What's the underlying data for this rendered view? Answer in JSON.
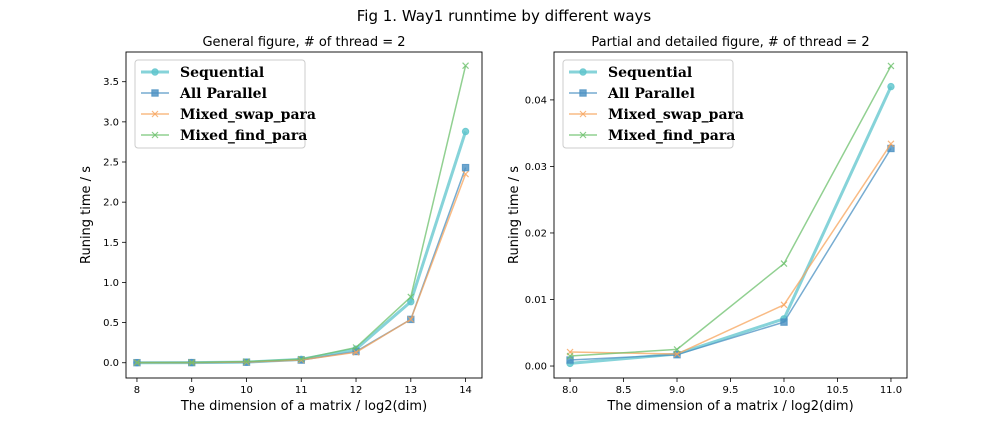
{
  "suptitle": "Fig 1. Way1 runntime by different ways",
  "colors": {
    "Sequential": "#5ec4cc",
    "All Parallel": "#4a90c2",
    "Mixed_swap_para": "#f7a45c",
    "Mixed_find_para": "#6cc06c"
  },
  "chart_data": [
    {
      "type": "line",
      "title": "General figure, # of thread = 2",
      "xlabel": "The dimension of a matrix / log2(dim)",
      "ylabel": "Runing time / s",
      "xlim": [
        7.8,
        14.3
      ],
      "ylim": [
        -0.19,
        3.87
      ],
      "xticks": [
        8,
        9,
        10,
        11,
        12,
        13,
        14
      ],
      "yticks": [
        0.0,
        0.5,
        1.0,
        1.5,
        2.0,
        2.5,
        3.0,
        3.5
      ],
      "xtick_labels": [
        "8",
        "9",
        "10",
        "11",
        "12",
        "13",
        "14"
      ],
      "ytick_labels": [
        "0.0",
        "0.5",
        "1.0",
        "1.5",
        "2.0",
        "2.5",
        "3.0",
        "3.5"
      ],
      "legend": "top-left",
      "grid": false,
      "x": [
        8,
        9,
        10,
        11,
        12,
        13,
        14
      ],
      "series": [
        {
          "name": "Sequential",
          "marker": "circle",
          "width": 3,
          "values": [
            0.0004,
            0.0018,
            0.007,
            0.042,
            0.17,
            0.76,
            2.88
          ]
        },
        {
          "name": "All Parallel",
          "marker": "square",
          "width": 1.5,
          "values": [
            0.0009,
            0.0017,
            0.0066,
            0.033,
            0.14,
            0.54,
            2.43
          ]
        },
        {
          "name": "Mixed_swap_para",
          "marker": "x",
          "width": 1.5,
          "values": [
            0.002,
            0.0018,
            0.009,
            0.034,
            0.13,
            0.54,
            2.35
          ]
        },
        {
          "name": "Mixed_find_para",
          "marker": "x",
          "width": 1.5,
          "values": [
            0.0015,
            0.0025,
            0.015,
            0.045,
            0.19,
            0.82,
            3.7
          ]
        }
      ]
    },
    {
      "type": "line",
      "title": "Partial and detailed figure, # of thread = 2",
      "xlabel": "The dimension of a matrix / log2(dim)",
      "ylabel": "Runing time / s",
      "xlim": [
        7.85,
        11.15
      ],
      "ylim": [
        -0.0018,
        0.0472
      ],
      "xticks": [
        8.0,
        8.5,
        9.0,
        9.5,
        10.0,
        10.5,
        11.0
      ],
      "yticks": [
        0.0,
        0.01,
        0.02,
        0.03,
        0.04
      ],
      "xtick_labels": [
        "8.0",
        "8.5",
        "9.0",
        "9.5",
        "10.0",
        "10.5",
        "11.0"
      ],
      "ytick_labels": [
        "0.00",
        "0.01",
        "0.02",
        "0.03",
        "0.04"
      ],
      "legend": "top-left",
      "grid": false,
      "x": [
        8,
        9,
        10,
        11
      ],
      "series": [
        {
          "name": "Sequential",
          "marker": "circle",
          "width": 3,
          "values": [
            0.0004,
            0.0018,
            0.0071,
            0.042
          ]
        },
        {
          "name": "All Parallel",
          "marker": "square",
          "width": 1.5,
          "values": [
            0.0009,
            0.0017,
            0.0066,
            0.0327
          ]
        },
        {
          "name": "Mixed_swap_para",
          "marker": "x",
          "width": 1.5,
          "values": [
            0.0021,
            0.0018,
            0.0092,
            0.0334
          ]
        },
        {
          "name": "Mixed_find_para",
          "marker": "x",
          "width": 1.5,
          "values": [
            0.0015,
            0.0025,
            0.0154,
            0.0451
          ]
        }
      ]
    }
  ]
}
